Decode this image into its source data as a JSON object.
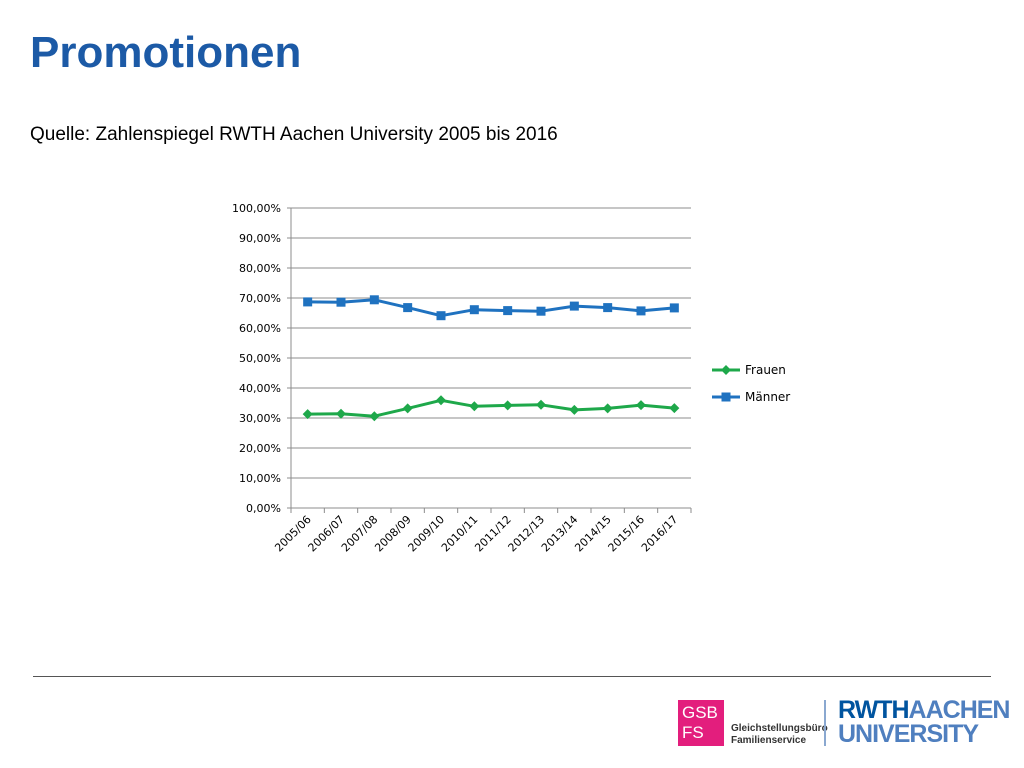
{
  "slide": {
    "title": "Promotionen",
    "subtitle": "Quelle: Zahlenspiegel RWTH Aachen University 2005 bis 2016"
  },
  "chart_data": {
    "type": "line",
    "categories": [
      "2005/06",
      "2006/07",
      "2007/08",
      "2008/09",
      "2009/10",
      "2010/11",
      "2011/12",
      "2012/13",
      "2013/14",
      "2014/15",
      "2015/16",
      "2016/17"
    ],
    "series": [
      {
        "name": "Frauen",
        "color": "#1ea84a",
        "marker": "diamond",
        "values": [
          31.3,
          31.4,
          30.6,
          33.2,
          35.9,
          33.9,
          34.2,
          34.4,
          32.7,
          33.2,
          34.3,
          33.3
        ]
      },
      {
        "name": "Männer",
        "color": "#1f72c0",
        "marker": "square",
        "values": [
          68.7,
          68.6,
          69.4,
          66.8,
          64.1,
          66.1,
          65.8,
          65.6,
          67.3,
          66.8,
          65.7,
          66.7
        ]
      }
    ],
    "ylim": [
      0,
      100
    ],
    "yticks": [
      0,
      10,
      20,
      30,
      40,
      50,
      60,
      70,
      80,
      90,
      100
    ],
    "ytick_labels": [
      "0,00%",
      "10,00%",
      "20,00%",
      "30,00%",
      "40,00%",
      "50,00%",
      "60,00%",
      "70,00%",
      "80,00%",
      "90,00%",
      "100,00%"
    ],
    "grid": true,
    "legend_position": "right"
  },
  "footer": {
    "gsb_logo_line1": "GSB",
    "gsb_logo_line2": "FS",
    "gsb_text_line1": "Gleichstellungsbüro",
    "gsb_text_line2": "Familienservice",
    "rwth_logo_part1": "RWTH",
    "rwth_logo_part2": "AACHEN",
    "rwth_logo_part3": "UNIVERSITY"
  }
}
